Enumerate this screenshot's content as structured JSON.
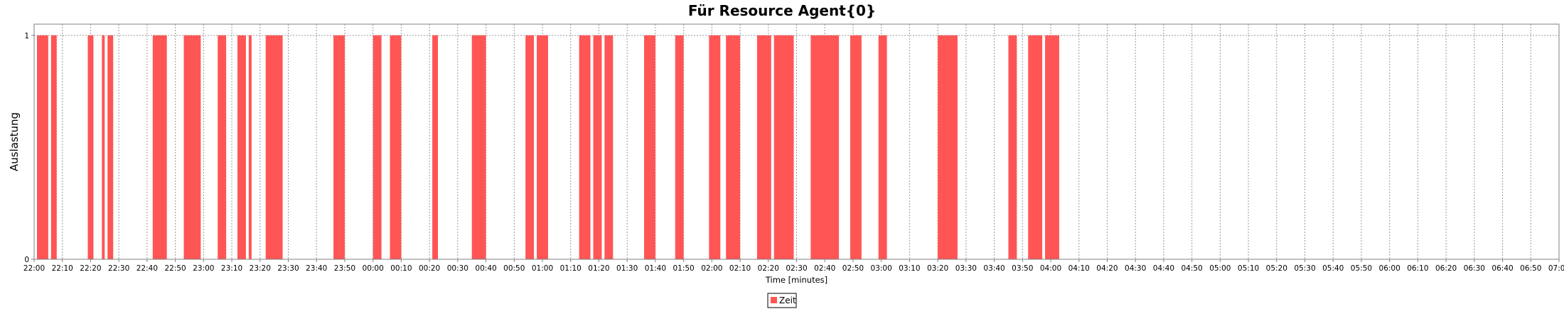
{
  "chart_data": {
    "type": "bar",
    "title": "Für Resource Agent{0}",
    "xlabel": "Time [minutes]",
    "ylabel": "Auslastung",
    "x_axis": {
      "type": "time",
      "start": "22:00",
      "end": "07:00",
      "tick_interval_minutes": 10,
      "tick_labels": [
        "22:00",
        "22:10",
        "22:20",
        "22:30",
        "22:40",
        "22:50",
        "23:00",
        "23:10",
        "23:20",
        "23:30",
        "23:40",
        "23:50",
        "00:00",
        "00:10",
        "00:20",
        "00:30",
        "00:40",
        "00:50",
        "01:00",
        "01:10",
        "01:20",
        "01:30",
        "01:40",
        "01:50",
        "02:00",
        "02:10",
        "02:20",
        "02:30",
        "02:40",
        "02:50",
        "03:00",
        "03:10",
        "03:20",
        "03:30",
        "03:40",
        "03:50",
        "04:00",
        "04:10",
        "04:20",
        "04:30",
        "04:40",
        "04:50",
        "05:00",
        "05:10",
        "05:20",
        "05:30",
        "05:40",
        "05:50",
        "06:00",
        "06:10",
        "06:20",
        "06:30",
        "06:40",
        "06:50",
        "07:00"
      ]
    },
    "y_axis": {
      "ylim": [
        0,
        1.05
      ],
      "tick_values": [
        0,
        1
      ],
      "tick_labels": [
        "0",
        "1"
      ]
    },
    "grid": true,
    "legend": {
      "placement": "bottom-center"
    },
    "series": [
      {
        "name": "Zeit",
        "color": "#ff5555",
        "intervals": [
          {
            "start": "22:01",
            "end": "22:05",
            "value": 1
          },
          {
            "start": "22:06",
            "end": "22:08",
            "value": 1
          },
          {
            "start": "22:19",
            "end": "22:21",
            "value": 1
          },
          {
            "start": "22:24",
            "end": "22:25",
            "value": 1
          },
          {
            "start": "22:26",
            "end": "22:28",
            "value": 1
          },
          {
            "start": "22:42",
            "end": "22:47",
            "value": 1
          },
          {
            "start": "22:53",
            "end": "22:59",
            "value": 1
          },
          {
            "start": "23:05",
            "end": "23:08",
            "value": 1
          },
          {
            "start": "23:12",
            "end": "23:15",
            "value": 1
          },
          {
            "start": "23:16",
            "end": "23:17",
            "value": 1
          },
          {
            "start": "23:22",
            "end": "23:28",
            "value": 1
          },
          {
            "start": "23:46",
            "end": "23:50",
            "value": 1
          },
          {
            "start": "00:00",
            "end": "00:03",
            "value": 1
          },
          {
            "start": "00:06",
            "end": "00:10",
            "value": 1
          },
          {
            "start": "00:21",
            "end": "00:23",
            "value": 1
          },
          {
            "start": "00:35",
            "end": "00:40",
            "value": 1
          },
          {
            "start": "00:54",
            "end": "00:57",
            "value": 1
          },
          {
            "start": "00:58",
            "end": "01:02",
            "value": 1
          },
          {
            "start": "01:13",
            "end": "01:17",
            "value": 1
          },
          {
            "start": "01:18",
            "end": "01:21",
            "value": 1
          },
          {
            "start": "01:22",
            "end": "01:25",
            "value": 1
          },
          {
            "start": "01:36",
            "end": "01:40",
            "value": 1
          },
          {
            "start": "01:47",
            "end": "01:50",
            "value": 1
          },
          {
            "start": "01:59",
            "end": "02:03",
            "value": 1
          },
          {
            "start": "02:05",
            "end": "02:10",
            "value": 1
          },
          {
            "start": "02:16",
            "end": "02:21",
            "value": 1
          },
          {
            "start": "02:22",
            "end": "02:29",
            "value": 1
          },
          {
            "start": "02:35",
            "end": "02:45",
            "value": 1
          },
          {
            "start": "02:49",
            "end": "02:53",
            "value": 1
          },
          {
            "start": "02:59",
            "end": "03:02",
            "value": 1
          },
          {
            "start": "03:20",
            "end": "03:27",
            "value": 1
          },
          {
            "start": "03:45",
            "end": "03:48",
            "value": 1
          },
          {
            "start": "03:52",
            "end": "03:57",
            "value": 1
          },
          {
            "start": "03:58",
            "end": "04:03",
            "value": 1
          }
        ]
      }
    ]
  }
}
